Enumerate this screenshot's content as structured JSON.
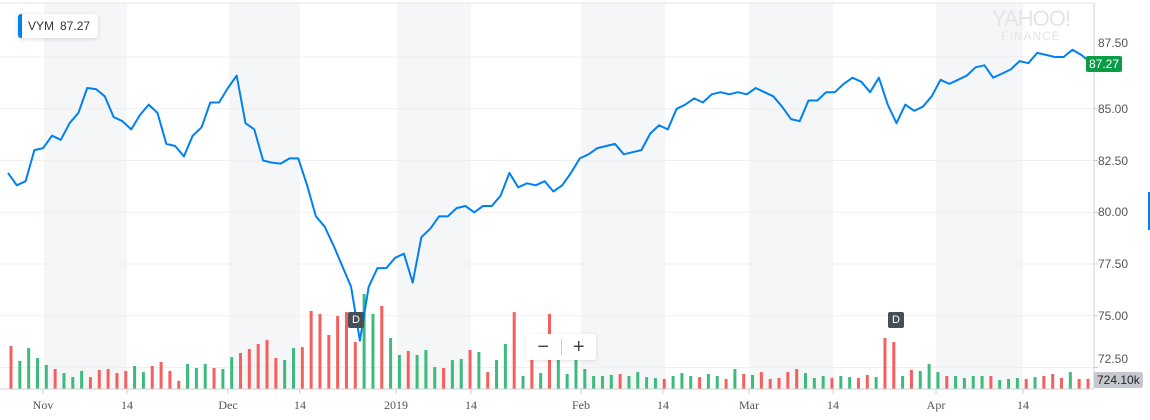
{
  "legend": {
    "symbol": "VYM",
    "value": "87.27"
  },
  "watermark": {
    "line1": "YAHOO!",
    "line2": "FINANCE"
  },
  "last_price_label": "87.27",
  "volume_label": "724.10k",
  "zoom": {
    "minus": "−",
    "plus": "+"
  },
  "dividend_markers": [
    "D",
    "D"
  ],
  "colors": {
    "line": "#0081f2",
    "up": "#3dbb7d",
    "down": "#f5605e",
    "last": "#0b9c47",
    "band": "#f5f6f7"
  },
  "chart_data": {
    "type": "line",
    "title": "VYM",
    "ylabel": "",
    "xlabel": "",
    "ylim": [
      72.5,
      87.5
    ],
    "yticks": [
      "87.50",
      "85.00",
      "82.50",
      "80.00",
      "77.50",
      "75.00",
      "72.50"
    ],
    "ytick_values": [
      87.5,
      85,
      82.5,
      80,
      77.5,
      75,
      72.5
    ],
    "xticks": [
      "Nov",
      "14",
      "Dec",
      "14",
      "2019",
      "14",
      "Feb",
      "14",
      "Mar",
      "14",
      "Apr",
      "14"
    ],
    "grid": true,
    "series": [
      {
        "name": "VYM",
        "values": [
          81.9,
          81.3,
          81.5,
          83.0,
          83.1,
          83.7,
          83.5,
          84.3,
          84.8,
          86.0,
          85.95,
          85.6,
          84.6,
          84.4,
          84.0,
          84.7,
          85.2,
          84.8,
          83.3,
          83.2,
          82.7,
          83.7,
          84.1,
          85.3,
          85.3,
          86.0,
          86.6,
          84.3,
          84.0,
          82.5,
          82.4,
          82.35,
          82.6,
          82.6,
          81.3,
          79.8,
          79.3,
          78.4,
          77.4,
          76.4,
          73.8,
          76.4,
          77.3,
          77.3,
          77.8,
          78.0,
          76.6,
          78.8,
          79.2,
          79.8,
          79.8,
          80.2,
          80.3,
          80.0,
          80.3,
          80.3,
          80.8,
          81.9,
          81.2,
          81.4,
          81.3,
          81.5,
          81.0,
          81.3,
          81.9,
          82.6,
          82.8,
          83.1,
          83.2,
          83.3,
          82.8,
          82.9,
          83.0,
          83.8,
          84.2,
          84.0,
          85.0,
          85.2,
          85.5,
          85.3,
          85.7,
          85.8,
          85.7,
          85.8,
          85.7,
          86.0,
          85.8,
          85.6,
          85.1,
          84.5,
          84.4,
          85.4,
          85.4,
          85.8,
          85.8,
          86.2,
          86.5,
          86.3,
          85.8,
          86.5,
          85.2,
          84.3,
          85.2,
          84.9,
          85.1,
          85.6,
          86.4,
          86.2,
          86.4,
          86.6,
          87.0,
          87.1,
          86.5,
          86.7,
          86.9,
          87.3,
          87.2,
          87.7,
          87.6,
          87.5,
          87.5,
          87.85,
          87.6,
          87.27
        ]
      }
    ],
    "volume": {
      "unit": "k",
      "values": [
        3100,
        2020,
        2950,
        2230,
        1730,
        1440,
        1150,
        860,
        1300,
        860,
        1370,
        1440,
        1150,
        1300,
        1660,
        1220,
        1660,
        1940,
        1300,
        580,
        1800,
        1510,
        1800,
        1510,
        1440,
        2300,
        2590,
        2880,
        3240,
        3530,
        2230,
        2090,
        2950,
        3020,
        5620,
        5400,
        3890,
        5260,
        5540,
        3380,
        6840,
        5400,
        5980,
        3670,
        2450,
        2740,
        2450,
        2810,
        1580,
        1510,
        2090,
        2160,
        2810,
        2660,
        1220,
        2090,
        3240,
        5540,
        940,
        2090,
        1150,
        5400,
        2090,
        1080,
        2090,
        1440,
        940,
        940,
        1010,
        1080,
        940,
        1220,
        860,
        790,
        724,
        940,
        1150,
        940,
        860,
        1080,
        940,
        724,
        1440,
        1080,
        1010,
        1220,
        724,
        790,
        1220,
        1440,
        1150,
        790,
        940,
        790,
        940,
        860,
        790,
        1010,
        860,
        3670,
        3380,
        940,
        1370,
        1300,
        1800,
        1220,
        940,
        940,
        790,
        940,
        940,
        940,
        650,
        724,
        790,
        724,
        860,
        940,
        1080,
        790,
        1220,
        724,
        724.1
      ],
      "direction": [
        "d",
        "u",
        "u",
        "u",
        "u",
        "d",
        "u",
        "u",
        "u",
        "d",
        "d",
        "d",
        "d",
        "d",
        "u",
        "u",
        "d",
        "d",
        "d",
        "d",
        "u",
        "u",
        "u",
        "d",
        "u",
        "u",
        "d",
        "d",
        "d",
        "d",
        "d",
        "u",
        "u",
        "d",
        "d",
        "d",
        "d",
        "d",
        "d",
        "d",
        "u",
        "u",
        "d",
        "u",
        "u",
        "d",
        "u",
        "u",
        "u",
        "d",
        "u",
        "u",
        "d",
        "u",
        "d",
        "u",
        "u",
        "d",
        "u",
        "d",
        "u",
        "d",
        "u",
        "u",
        "u",
        "u",
        "u",
        "u",
        "u",
        "d",
        "u",
        "u",
        "u",
        "u",
        "d",
        "u",
        "u",
        "u",
        "d",
        "u",
        "u",
        "d",
        "u",
        "d",
        "u",
        "d",
        "d",
        "d",
        "d",
        "d",
        "u",
        "u",
        "u",
        "d",
        "u",
        "u",
        "d",
        "d",
        "u",
        "d",
        "d",
        "u",
        "d",
        "u",
        "u",
        "u",
        "d",
        "u",
        "u",
        "u",
        "u",
        "d",
        "u",
        "u",
        "u",
        "d",
        "u",
        "d",
        "d",
        "d",
        "u",
        "d",
        "d"
      ]
    }
  }
}
